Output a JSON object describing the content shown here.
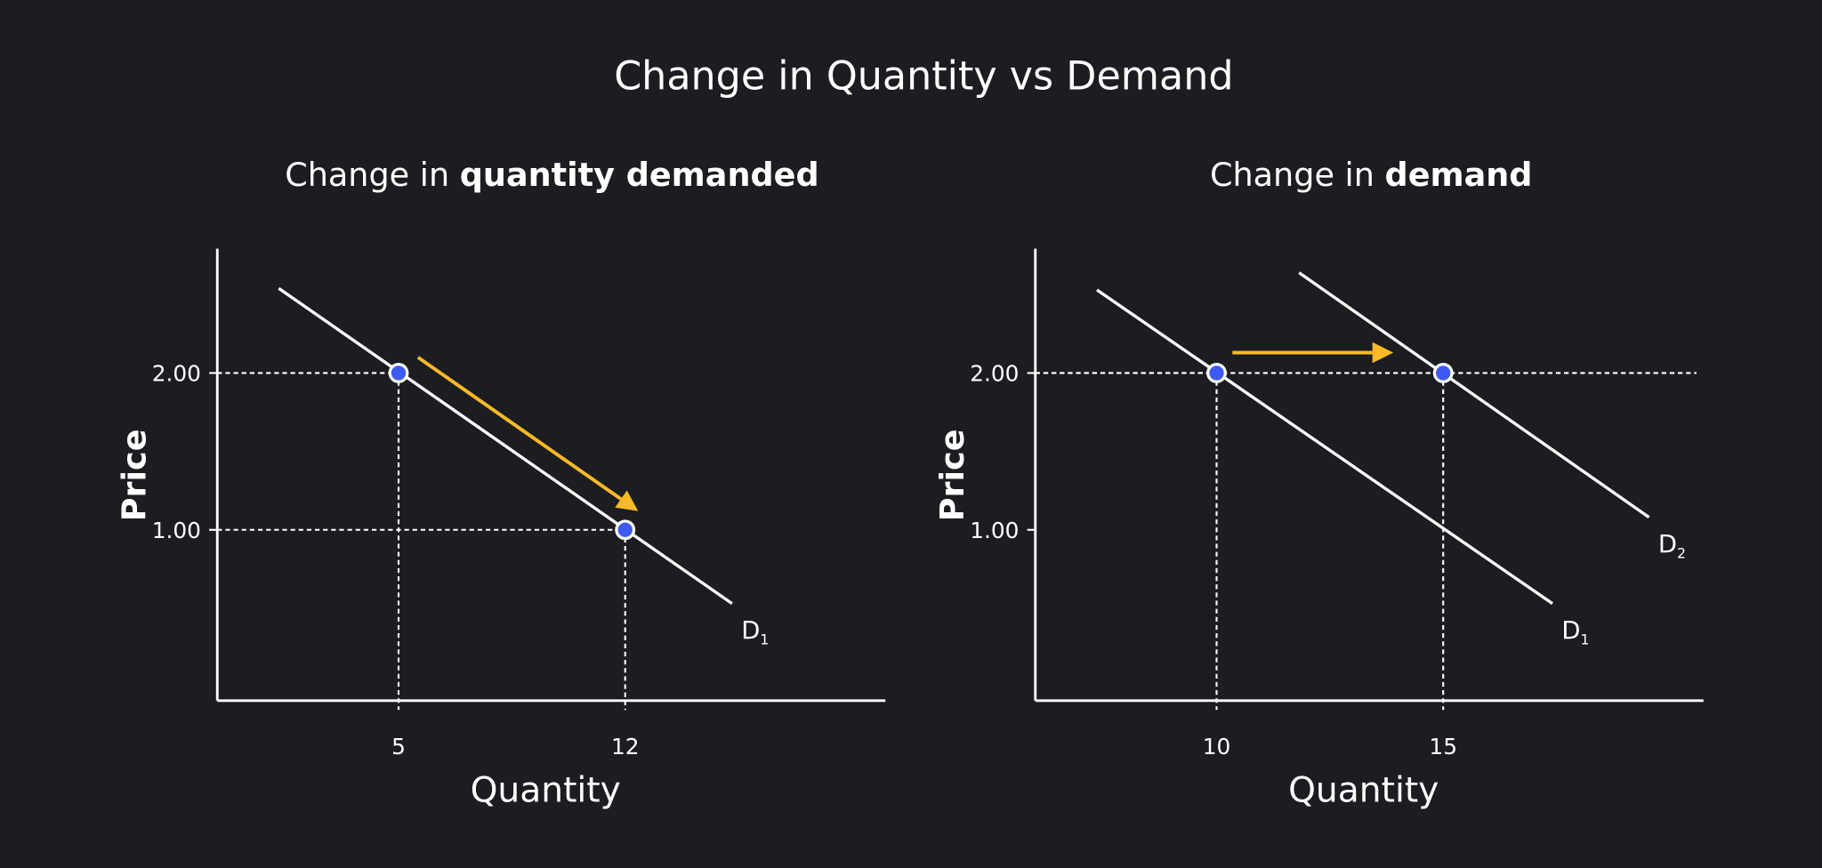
{
  "title": "Change in Quantity vs Demand",
  "colors": {
    "background": "#1c1d21",
    "line": "#ffffff",
    "point": "#3d5af1",
    "arrow": "#f9b928"
  },
  "chart_data": [
    {
      "type": "line",
      "title_prefix": "Change in ",
      "title_bold": "quantity demanded",
      "xlabel": "Quantity",
      "ylabel": "Price",
      "xticks": [
        {
          "value": 5,
          "label": "5"
        },
        {
          "value": 12,
          "label": "12"
        }
      ],
      "yticks": [
        {
          "value": 2,
          "label": "2.00"
        },
        {
          "value": 1,
          "label": "1.00"
        }
      ],
      "series": [
        {
          "name": "D",
          "sub": "1",
          "points": [
            [
              1.3,
              2.54
            ],
            [
              15.3,
              0.53
            ]
          ]
        }
      ],
      "points": [
        [
          5,
          2
        ],
        [
          12,
          1
        ]
      ],
      "arrow": {
        "from": [
          5.6,
          2.1
        ],
        "to": [
          12.4,
          1.12
        ],
        "meaning": "movement along curve"
      }
    },
    {
      "type": "line",
      "title_prefix": "Change in ",
      "title_bold": "demand",
      "xlabel": "Quantity",
      "ylabel": "Price",
      "xticks": [
        {
          "value": 10,
          "label": "10"
        },
        {
          "value": 15,
          "label": "15"
        }
      ],
      "yticks": [
        {
          "value": 2,
          "label": "2.00"
        },
        {
          "value": 1,
          "label": "1.00"
        }
      ],
      "series": [
        {
          "name": "D",
          "sub": "1",
          "points": [
            [
              7.36,
              2.53
            ],
            [
              17.41,
              0.53
            ]
          ]
        },
        {
          "name": "D",
          "sub": "2",
          "points": [
            [
              11.82,
              2.64
            ],
            [
              19.54,
              1.08
            ]
          ]
        }
      ],
      "points": [
        [
          10,
          2
        ],
        [
          15,
          2
        ]
      ],
      "arrow": {
        "from": [
          10.35,
          2.13
        ],
        "to": [
          13.9,
          2.13
        ],
        "meaning": "shift of curve"
      }
    }
  ]
}
